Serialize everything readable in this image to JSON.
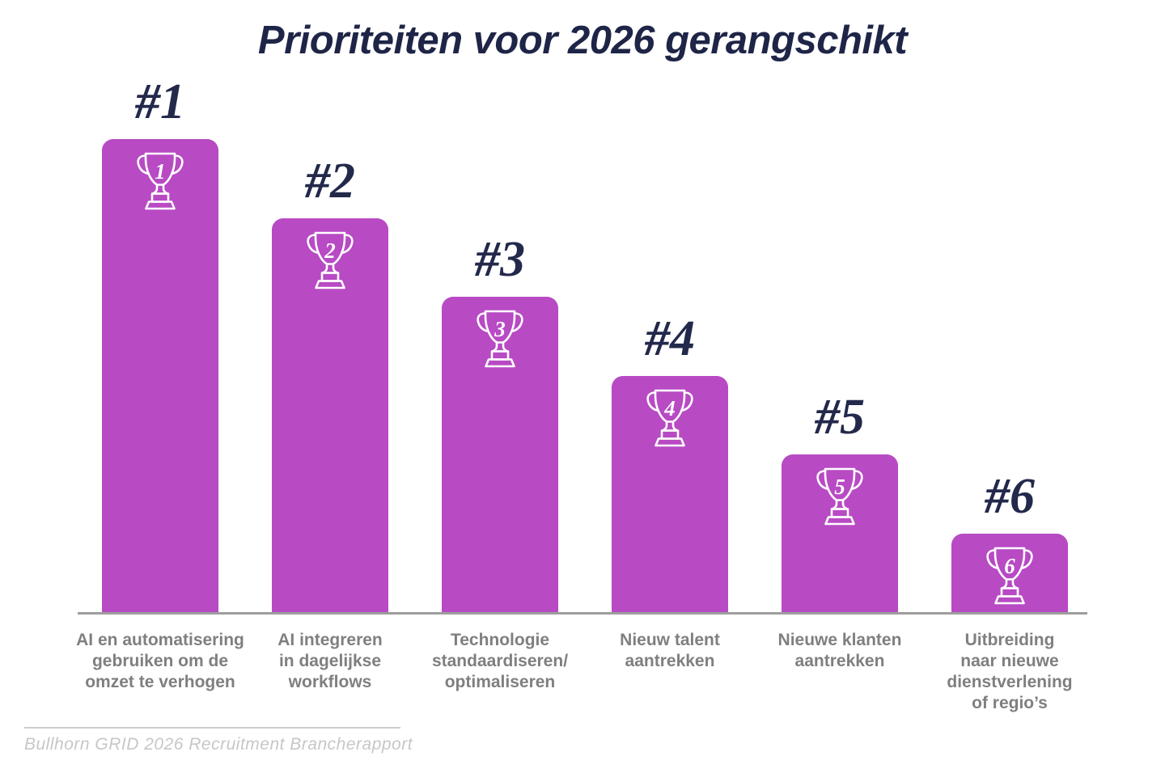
{
  "title": "Prioriteiten voor 2026 gerangschikt",
  "chart_data": {
    "type": "bar",
    "title": "Prioriteiten voor 2026 gerangschikt",
    "categories": [
      "AI en automatisering\ngebruiken om de\nomzet te verhogen",
      "AI integreren\nin dagelijkse\nworkflows",
      "Technologie\nstandaardiseren/\noptimaliseren",
      "Nieuw talent\naantrekken",
      "Nieuwe klanten\naantrekken",
      "Uitbreiding\nnaar nieuwe\ndienstverlening\nof regio’s"
    ],
    "rank_labels": [
      "#1",
      "#2",
      "#3",
      "#4",
      "#5",
      "#6"
    ],
    "trophy_numbers": [
      "1",
      "2",
      "3",
      "4",
      "5",
      "6"
    ],
    "ranks": [
      1,
      2,
      3,
      4,
      5,
      6
    ],
    "values_pct_of_max_height": [
      100,
      83.3,
      66.8,
      50.1,
      33.6,
      16.9
    ],
    "bar_color": "#B84AC4",
    "title_color": "#1F2547",
    "rank_label_color": "#23294B",
    "category_label_color": "#7F7F7F",
    "axis_line_color": "#9E9E9E",
    "legend": "none",
    "y_axis": "none"
  },
  "footer": {
    "source": "Bullhorn GRID 2026 Recruitment Brancherapport"
  }
}
